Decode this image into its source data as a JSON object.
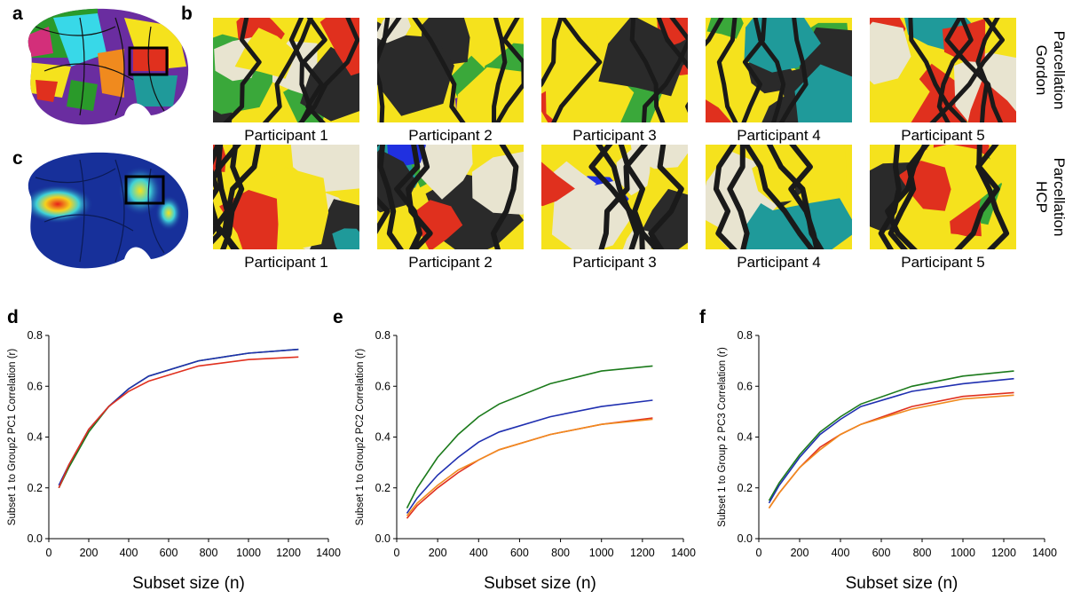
{
  "panel_labels": [
    "a",
    "b",
    "c",
    "d",
    "e",
    "f"
  ],
  "parcellation_rows": [
    {
      "label_lines": [
        "Gordon",
        "Parcellation"
      ],
      "participants": [
        "Participant 1",
        "Participant 2",
        "Participant 3",
        "Participant 4",
        "Participant 5"
      ]
    },
    {
      "label_lines": [
        "HCP",
        "Parcellation"
      ],
      "participants": [
        "Participant 1",
        "Participant 2",
        "Participant 3",
        "Participant 4",
        "Participant 5"
      ]
    }
  ],
  "chart_data": [
    {
      "type": "line",
      "xlabel": "Subset size (n)",
      "ylabel": "Subset 1 to Group2 PC1 Correlation (r)",
      "xlim": [
        0,
        1400
      ],
      "ylim": [
        0,
        0.8
      ],
      "xticks": [
        0,
        200,
        400,
        600,
        800,
        1000,
        1200,
        1400
      ],
      "yticks": [
        {
          "value": 0,
          "label": "0.0"
        },
        0.2,
        0.4,
        0.6,
        0.8
      ],
      "x": [
        50,
        100,
        200,
        300,
        400,
        500,
        750,
        1000,
        1250
      ],
      "series": [
        {
          "color": "#1b7a1b",
          "values": [
            0.2,
            0.28,
            0.42,
            0.52,
            0.59,
            0.64,
            0.7,
            0.73,
            0.745
          ]
        },
        {
          "color": "#1f2fb0",
          "values": [
            0.21,
            0.29,
            0.43,
            0.52,
            0.59,
            0.64,
            0.7,
            0.73,
            0.745
          ]
        },
        {
          "color": "#e0301e",
          "values": [
            0.2,
            0.29,
            0.43,
            0.52,
            0.58,
            0.62,
            0.68,
            0.705,
            0.715
          ]
        }
      ]
    },
    {
      "type": "line",
      "xlabel": "Subset size (n)",
      "ylabel": "Subset 1 to Group2 PC2 Correlation (r)",
      "xlim": [
        0,
        1400
      ],
      "ylim": [
        0,
        0.8
      ],
      "xticks": [
        0,
        200,
        400,
        600,
        800,
        1000,
        1200,
        1400
      ],
      "yticks": [
        {
          "value": 0,
          "label": "0.0"
        },
        0.2,
        0.4,
        0.6,
        0.8
      ],
      "x": [
        50,
        100,
        200,
        300,
        400,
        500,
        750,
        1000,
        1250
      ],
      "series": [
        {
          "color": "#1b7a1b",
          "values": [
            0.12,
            0.2,
            0.32,
            0.41,
            0.48,
            0.53,
            0.61,
            0.66,
            0.68
          ]
        },
        {
          "color": "#1f2fb0",
          "values": [
            0.1,
            0.16,
            0.25,
            0.32,
            0.38,
            0.42,
            0.48,
            0.52,
            0.545
          ]
        },
        {
          "color": "#e0301e",
          "values": [
            0.08,
            0.13,
            0.2,
            0.26,
            0.31,
            0.35,
            0.41,
            0.45,
            0.475
          ]
        },
        {
          "color": "#f08a1e",
          "values": [
            0.09,
            0.14,
            0.21,
            0.27,
            0.31,
            0.35,
            0.41,
            0.45,
            0.47
          ]
        }
      ]
    },
    {
      "type": "line",
      "xlabel": "Subset size (n)",
      "ylabel": "Subset 1 to Group 2 PC3 Correlation (r)",
      "xlim": [
        0,
        1400
      ],
      "ylim": [
        0,
        0.8
      ],
      "xticks": [
        0,
        200,
        400,
        600,
        800,
        1000,
        1200,
        1400
      ],
      "yticks": [
        {
          "value": 0,
          "label": "0.0"
        },
        0.2,
        0.4,
        0.6,
        0.8
      ],
      "x": [
        50,
        100,
        200,
        300,
        400,
        500,
        750,
        1000,
        1250
      ],
      "series": [
        {
          "color": "#1b7a1b",
          "values": [
            0.15,
            0.22,
            0.33,
            0.42,
            0.48,
            0.53,
            0.6,
            0.64,
            0.66
          ]
        },
        {
          "color": "#1f2fb0",
          "values": [
            0.14,
            0.21,
            0.32,
            0.41,
            0.47,
            0.52,
            0.58,
            0.61,
            0.63
          ]
        },
        {
          "color": "#e0301e",
          "values": [
            0.12,
            0.18,
            0.28,
            0.36,
            0.41,
            0.45,
            0.52,
            0.56,
            0.575
          ]
        },
        {
          "color": "#f08a1e",
          "values": [
            0.12,
            0.18,
            0.28,
            0.35,
            0.41,
            0.45,
            0.51,
            0.55,
            0.565
          ]
        }
      ]
    }
  ]
}
